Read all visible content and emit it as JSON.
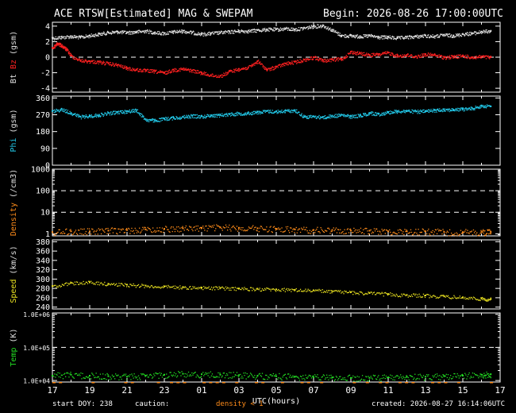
{
  "header": {
    "title": "ACE RTSW[Estimated] MAG & SWEPAM",
    "begin": "Begin: 2026-08-26 17:00:00UTC"
  },
  "footer": {
    "start_doy": "start DOY: 238",
    "caution": "caution:",
    "density_note": "density < 1",
    "created": "created: 2026-08-27 16:14:06UTC"
  },
  "colors": {
    "bt": "#e0e0e0",
    "bz": "#ff2020",
    "phi": "#22c8e8",
    "density": "#ff8c1a",
    "speed": "#e8e020",
    "temp": "#22dd22",
    "axis": "#ffffff",
    "background": "#000000"
  },
  "chart_data": {
    "type": "scatter",
    "x_axis": {
      "label": "UTC(hours)",
      "ticks": [
        "17",
        "19",
        "21",
        "23",
        "01",
        "03",
        "05",
        "07",
        "09",
        "11",
        "13",
        "15",
        "17"
      ],
      "range_hours": [
        0,
        24
      ]
    },
    "panels": [
      {
        "name": "mag",
        "ylabel_parts": [
          {
            "text": "Bt",
            "color": "#e0e0e0"
          },
          {
            "text": "Bz",
            "color": "#ff2020"
          },
          {
            "text": "(gsm)",
            "color": "#e0e0e0"
          }
        ],
        "scale": "linear",
        "ylim": [
          -4.5,
          4.5
        ],
        "yticks": [
          -4,
          -2,
          0,
          2,
          4
        ],
        "yticklabels": [
          "-4",
          "-2",
          "0",
          "2",
          "4"
        ],
        "dashed_lines": [
          0
        ],
        "series": [
          {
            "key": "bt",
            "color": "#e0e0e0",
            "x": [
              0,
              0.5,
              1,
              1.5,
              2,
              2.5,
              3,
              3.5,
              4,
              4.5,
              5,
              5.5,
              6,
              6.5,
              7,
              7.5,
              8,
              8.5,
              9,
              9.5,
              10,
              10.5,
              11,
              11.5,
              12,
              12.5,
              13,
              13.5,
              14,
              14.5,
              15,
              15.5,
              16,
              16.5,
              17,
              17.5,
              18,
              18.5,
              19,
              19.5,
              20,
              20.5,
              21,
              21.5,
              22,
              22.5,
              23,
              23.5
            ],
            "y": [
              2.5,
              2.6,
              2.7,
              2.6,
              2.8,
              3.0,
              3.2,
              3.3,
              3.2,
              3.3,
              3.4,
              3.2,
              3.1,
              3.3,
              3.4,
              3.2,
              3.0,
              3.1,
              3.2,
              3.3,
              3.4,
              3.4,
              3.5,
              3.6,
              3.6,
              3.7,
              3.6,
              3.8,
              4.0,
              4.1,
              3.5,
              2.8,
              2.8,
              2.7,
              2.8,
              2.6,
              2.6,
              2.5,
              2.6,
              2.7,
              2.8,
              2.7,
              2.9,
              2.8,
              3.0,
              3.1,
              3.3,
              3.4
            ]
          },
          {
            "key": "bz",
            "color": "#ff2020",
            "x": [
              0,
              0.25,
              0.5,
              0.75,
              1,
              1.5,
              2,
              2.5,
              3,
              3.5,
              4,
              4.5,
              5,
              5.5,
              6,
              6.5,
              7,
              7.5,
              8,
              8.5,
              9,
              9.5,
              10,
              10.5,
              11,
              11.5,
              12,
              12.5,
              13,
              13.5,
              14,
              14.5,
              15,
              15.5,
              16,
              16.5,
              17,
              17.5,
              18,
              18.5,
              19,
              19.5,
              20,
              20.5,
              21,
              21.5,
              22,
              22.5,
              23,
              23.5
            ],
            "y": [
              1.2,
              1.8,
              1.5,
              1.0,
              0.2,
              -0.4,
              -0.5,
              -0.6,
              -0.8,
              -1.0,
              -1.4,
              -1.6,
              -1.7,
              -1.8,
              -2.0,
              -1.6,
              -1.5,
              -1.7,
              -2.0,
              -2.3,
              -2.4,
              -1.8,
              -1.5,
              -1.3,
              -0.5,
              -1.6,
              -1.2,
              -0.8,
              -0.6,
              -0.3,
              0.0,
              -0.4,
              -0.3,
              -0.2,
              0.7,
              0.5,
              0.3,
              0.4,
              0.6,
              0.2,
              0.3,
              0.1,
              0.4,
              0.3,
              0.0,
              0.1,
              0.2,
              0.0,
              0.1,
              0.0
            ]
          }
        ]
      },
      {
        "name": "phi",
        "ylabel_parts": [
          {
            "text": "Phi",
            "color": "#22c8e8"
          },
          {
            "text": "(gsm)",
            "color": "#e0e0e0"
          }
        ],
        "scale": "linear",
        "ylim": [
          0,
          370
        ],
        "yticks": [
          0,
          90,
          180,
          270,
          360
        ],
        "yticklabels": [
          "0",
          "90",
          "180",
          "270",
          "360"
        ],
        "dashed_lines": [],
        "series": [
          {
            "key": "phi",
            "color": "#22c8e8",
            "x": [
              0,
              0.5,
              1,
              1.5,
              2,
              2.5,
              3,
              3.5,
              4,
              4.5,
              5,
              5.5,
              6,
              6.5,
              7,
              7.5,
              8,
              8.5,
              9,
              9.5,
              10,
              10.5,
              11,
              11.5,
              12,
              12.5,
              13,
              13.5,
              14,
              14.5,
              15,
              15.5,
              16,
              16.5,
              17,
              17.5,
              18,
              18.5,
              19,
              19.5,
              20,
              20.5,
              21,
              21.5,
              22,
              22.5,
              23,
              23.5
            ],
            "y": [
              290,
              300,
              280,
              260,
              265,
              270,
              280,
              285,
              290,
              295,
              245,
              240,
              250,
              255,
              260,
              265,
              262,
              268,
              270,
              275,
              278,
              280,
              285,
              290,
              288,
              292,
              295,
              260,
              262,
              258,
              265,
              270,
              262,
              268,
              280,
              275,
              285,
              290,
              292,
              288,
              290,
              295,
              300,
              298,
              302,
              305,
              320,
              315
            ]
          }
        ]
      },
      {
        "name": "density",
        "ylabel_parts": [
          {
            "text": "Density",
            "color": "#ff8c1a"
          },
          {
            "text": "(/cm3)",
            "color": "#e0e0e0"
          }
        ],
        "scale": "log",
        "ylim": [
          0.8,
          1000
        ],
        "yticks": [
          1,
          10,
          100,
          1000
        ],
        "yticklabels": [
          "1",
          "10",
          "100",
          "1000"
        ],
        "dashed_lines": [
          10,
          100
        ],
        "series": [
          {
            "key": "density",
            "color": "#ff8c1a",
            "x": [
              0,
              1,
              2,
              3,
              4,
              5,
              6,
              7,
              8,
              9,
              10,
              11,
              12,
              13,
              14,
              15,
              16,
              17,
              18,
              19,
              20,
              21,
              22,
              23,
              23.5
            ],
            "y": [
              1.2,
              1.3,
              1.3,
              1.4,
              1.5,
              1.6,
              1.7,
              1.8,
              1.9,
              2.0,
              1.9,
              1.8,
              1.7,
              1.6,
              1.5,
              1.5,
              1.4,
              1.4,
              1.3,
              1.3,
              1.3,
              1.2,
              1.2,
              1.2,
              1.2
            ]
          }
        ]
      },
      {
        "name": "speed",
        "ylabel_parts": [
          {
            "text": "Speed",
            "color": "#e8e020"
          },
          {
            "text": "(km/s)",
            "color": "#e0e0e0"
          }
        ],
        "scale": "linear",
        "ylim": [
          236,
          384
        ],
        "yticks": [
          240,
          260,
          280,
          300,
          320,
          340,
          360,
          380
        ],
        "yticklabels": [
          "240",
          "260",
          "280",
          "300",
          "320",
          "340",
          "360",
          "380"
        ],
        "dashed_lines": [],
        "series": [
          {
            "key": "speed",
            "color": "#e8e020",
            "x": [
              0,
              1,
              2,
              3,
              4,
              5,
              6,
              7,
              8,
              9,
              10,
              11,
              12,
              13,
              14,
              15,
              16,
              17,
              18,
              19,
              20,
              21,
              22,
              23,
              23.5
            ],
            "y": [
              285,
              292,
              293,
              290,
              288,
              286,
              284,
              283,
              282,
              281,
              280,
              279,
              278,
              277,
              276,
              274,
              272,
              270,
              268,
              266,
              265,
              263,
              261,
              258,
              257
            ]
          }
        ]
      },
      {
        "name": "temp",
        "ylabel_parts": [
          {
            "text": "Temp",
            "color": "#22dd22"
          },
          {
            "text": "(K)",
            "color": "#e0e0e0"
          }
        ],
        "scale": "log",
        "ylim": [
          9000,
          1100000
        ],
        "yticks": [
          10000,
          100000,
          1000000
        ],
        "yticklabels": [
          "1.0E+04",
          "1.0E+05",
          "1.0E+06"
        ],
        "dashed_lines": [
          100000
        ],
        "series": [
          {
            "key": "temp",
            "color": "#22dd22",
            "x": [
              0,
              1,
              2,
              3,
              4,
              5,
              6,
              7,
              8,
              9,
              10,
              11,
              12,
              13,
              14,
              15,
              16,
              17,
              18,
              19,
              20,
              21,
              22,
              23,
              23.5
            ],
            "y": [
              14000,
              15000,
              14000,
              13500,
              13000,
              14000,
              15000,
              16000,
              15500,
              15000,
              14500,
              14000,
              13500,
              13000,
              12500,
              12500,
              12000,
              12000,
              12500,
              13000,
              13000,
              13500,
              14000,
              15000,
              15500
            ]
          }
        ]
      }
    ]
  }
}
